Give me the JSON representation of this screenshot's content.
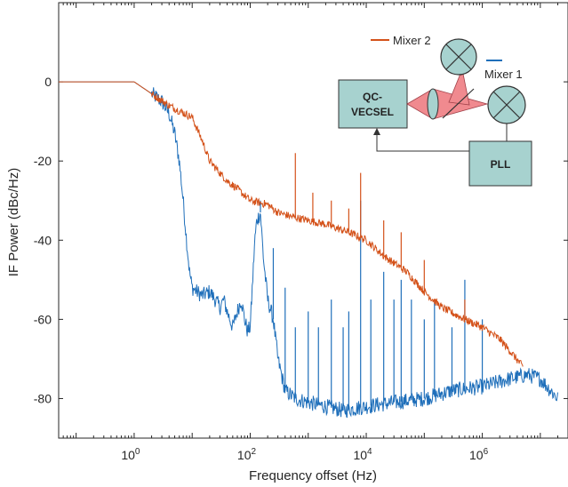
{
  "chart_data": {
    "type": "line",
    "title": "",
    "xlabel": "Frequency offset (Hz)",
    "ylabel": "IF Power (dBc/Hz)",
    "x_scale": "log",
    "xlim": [
      0.05,
      30000000
    ],
    "ylim": [
      -90,
      20
    ],
    "x_ticks": [
      {
        "value": 1,
        "base": "10",
        "exp": "0"
      },
      {
        "value": 100,
        "base": "10",
        "exp": "2"
      },
      {
        "value": 10000,
        "base": "10",
        "exp": "4"
      },
      {
        "value": 1000000,
        "base": "10",
        "exp": "6"
      }
    ],
    "y_ticks": [
      0,
      -20,
      -40,
      -60,
      -80
    ],
    "grid": false,
    "series": [
      {
        "name": "Mixer 1",
        "color": "#1f6fba",
        "points": [
          [
            0.05,
            0
          ],
          [
            1,
            0
          ],
          [
            2,
            -3
          ],
          [
            3,
            -5
          ],
          [
            4,
            -8
          ],
          [
            5,
            -13
          ],
          [
            6,
            -20
          ],
          [
            7,
            -30
          ],
          [
            8,
            -40
          ],
          [
            9,
            -48
          ],
          [
            10,
            -52
          ],
          [
            12,
            -53
          ],
          [
            15,
            -54
          ],
          [
            20,
            -53
          ],
          [
            25,
            -55
          ],
          [
            30,
            -57
          ],
          [
            35,
            -55
          ],
          [
            40,
            -58
          ],
          [
            50,
            -62
          ],
          [
            60,
            -58
          ],
          [
            70,
            -55
          ],
          [
            80,
            -60
          ],
          [
            90,
            -63
          ],
          [
            100,
            -62
          ],
          [
            120,
            -40
          ],
          [
            130,
            -35
          ],
          [
            150,
            -33
          ],
          [
            170,
            -45
          ],
          [
            200,
            -55
          ],
          [
            250,
            -60
          ],
          [
            300,
            -70
          ],
          [
            400,
            -78
          ],
          [
            600,
            -80
          ],
          [
            1000,
            -81
          ],
          [
            2000,
            -82
          ],
          [
            4000,
            -83
          ],
          [
            10000,
            -82
          ],
          [
            30000,
            -81
          ],
          [
            100000,
            -80
          ],
          [
            300000,
            -78
          ],
          [
            1000000,
            -77
          ],
          [
            3000000,
            -75
          ],
          [
            6000000,
            -74
          ],
          [
            10000000,
            -75
          ],
          [
            20000000,
            -80
          ]
        ],
        "spikes": [
          [
            150,
            -30
          ],
          [
            250,
            -42
          ],
          [
            400,
            -52
          ],
          [
            600,
            -62
          ],
          [
            1000,
            -58
          ],
          [
            1500,
            -62
          ],
          [
            2500,
            -55
          ],
          [
            4000,
            -62
          ],
          [
            5000,
            -58
          ],
          [
            8000,
            -30
          ],
          [
            12000,
            -55
          ],
          [
            20000,
            -48
          ],
          [
            30000,
            -55
          ],
          [
            40000,
            -50
          ],
          [
            60000,
            -55
          ],
          [
            100000,
            -60
          ],
          [
            150000,
            -55
          ],
          [
            300000,
            -62
          ],
          [
            500000,
            -50
          ],
          [
            1000000,
            -60
          ]
        ]
      },
      {
        "name": "Mixer 2",
        "color": "#d4521a",
        "points": [
          [
            0.05,
            0
          ],
          [
            1,
            0
          ],
          [
            2,
            -3
          ],
          [
            4,
            -6
          ],
          [
            10,
            -9
          ],
          [
            15,
            -15
          ],
          [
            20,
            -20
          ],
          [
            30,
            -23
          ],
          [
            40,
            -25
          ],
          [
            60,
            -27
          ],
          [
            100,
            -30
          ],
          [
            200,
            -31
          ],
          [
            300,
            -33
          ],
          [
            500,
            -34
          ],
          [
            1000,
            -35
          ],
          [
            2000,
            -36
          ],
          [
            5000,
            -38
          ],
          [
            10000,
            -40
          ],
          [
            20000,
            -44
          ],
          [
            50000,
            -48
          ],
          [
            100000,
            -53
          ],
          [
            200000,
            -57
          ],
          [
            500000,
            -60
          ],
          [
            1000000,
            -62
          ],
          [
            2000000,
            -65
          ],
          [
            3000000,
            -68
          ],
          [
            5000000,
            -72
          ]
        ],
        "spikes": [
          [
            600,
            -18
          ],
          [
            1200,
            -28
          ],
          [
            2500,
            -30
          ],
          [
            5000,
            -32
          ],
          [
            8000,
            -23
          ],
          [
            20000,
            -35
          ],
          [
            40000,
            -38
          ],
          [
            100000,
            -45
          ],
          [
            500000,
            -55
          ]
        ]
      }
    ]
  },
  "inset": {
    "legend": [
      {
        "label": "Mixer 2",
        "color": "#d4521a"
      },
      {
        "label": "Mixer 1",
        "color": "#1f6fba"
      }
    ],
    "laser_label_line1": "QC-",
    "laser_label_line2": "VECSEL",
    "pll_label": "PLL",
    "block_fill": "#a7d2cf",
    "beam_fill": "#f08a8f"
  }
}
